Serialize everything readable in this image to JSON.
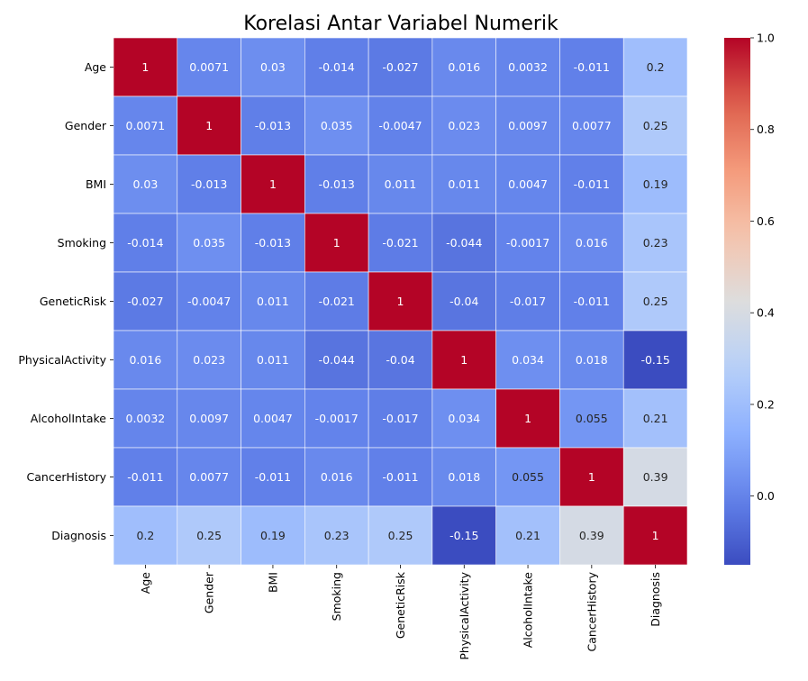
{
  "chart_data": {
    "type": "heatmap",
    "title": "Korelasi Antar Variabel Numerik",
    "row_labels": [
      "Age",
      "Gender",
      "BMI",
      "Smoking",
      "GeneticRisk",
      "PhysicalActivity",
      "AlcoholIntake",
      "CancerHistory",
      "Diagnosis"
    ],
    "col_labels": [
      "Age",
      "Gender",
      "BMI",
      "Smoking",
      "GeneticRisk",
      "PhysicalActivity",
      "AlcoholIntake",
      "CancerHistory",
      "Diagnosis"
    ],
    "values": [
      [
        1,
        0.0071,
        0.03,
        -0.014,
        -0.027,
        0.016,
        0.0032,
        -0.011,
        0.2
      ],
      [
        0.0071,
        1,
        -0.013,
        0.035,
        -0.0047,
        0.023,
        0.0097,
        0.0077,
        0.25
      ],
      [
        0.03,
        -0.013,
        1,
        -0.013,
        0.011,
        0.011,
        0.0047,
        -0.011,
        0.19
      ],
      [
        -0.014,
        0.035,
        -0.013,
        1,
        -0.021,
        -0.044,
        -0.0017,
        0.016,
        0.23
      ],
      [
        -0.027,
        -0.0047,
        0.011,
        -0.021,
        1,
        -0.04,
        -0.017,
        -0.011,
        0.25
      ],
      [
        0.016,
        0.023,
        0.011,
        -0.044,
        -0.04,
        1,
        0.034,
        0.018,
        -0.15
      ],
      [
        0.0032,
        0.0097,
        0.0047,
        -0.0017,
        -0.017,
        0.034,
        1,
        0.055,
        0.21
      ],
      [
        -0.011,
        0.0077,
        -0.011,
        0.016,
        -0.011,
        0.018,
        0.055,
        1,
        0.39
      ],
      [
        0.2,
        0.25,
        0.19,
        0.23,
        0.25,
        -0.15,
        0.21,
        0.39,
        1
      ]
    ],
    "colormap": "coolwarm",
    "color_range": [
      -0.15,
      1.0
    ],
    "colorbar_ticks": [
      "1.0",
      "0.8",
      "0.6",
      "0.4",
      "0.2",
      "0.0"
    ],
    "colorbar_tick_values": [
      1.0,
      0.8,
      0.6,
      0.4,
      0.2,
      0.0
    ],
    "annotations": true,
    "cell_separator_color": "#ffffff"
  }
}
